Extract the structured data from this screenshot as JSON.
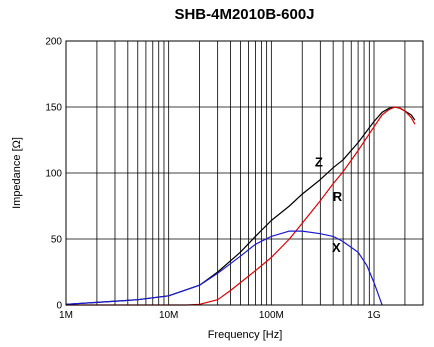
{
  "chart_data": {
    "type": "line",
    "title": "SHB-4M2010B-600J",
    "xlabel": "Frequency [Hz]",
    "ylabel": "Impedance [Ω]",
    "x_scale": "log",
    "xlim": [
      1000000,
      3000000000
    ],
    "ylim": [
      0,
      200
    ],
    "x_ticks": [
      {
        "value": 1000000,
        "label": "1M"
      },
      {
        "value": 10000000,
        "label": "10M"
      },
      {
        "value": 100000000,
        "label": "100M"
      },
      {
        "value": 1000000000,
        "label": "1G"
      }
    ],
    "y_ticks": [
      {
        "value": 0,
        "label": "0"
      },
      {
        "value": 50,
        "label": "50"
      },
      {
        "value": 100,
        "label": "100"
      },
      {
        "value": 150,
        "label": "150"
      },
      {
        "value": 200,
        "label": "200"
      }
    ],
    "grid": true,
    "series": [
      {
        "name": "Z",
        "color": "#000000",
        "x": [
          1000000,
          2000000,
          5000000,
          10000000,
          20000000,
          30000000,
          50000000,
          70000000,
          100000000,
          150000000,
          200000000,
          300000000,
          400000000,
          500000000,
          700000000,
          1000000000,
          1200000000,
          1400000000,
          1600000000,
          1800000000,
          2000000000,
          2300000000,
          2500000000
        ],
        "y": [
          0.5,
          2,
          4,
          7,
          15,
          25,
          40,
          52,
          64,
          75,
          84,
          95,
          104,
          110,
          123,
          139,
          146,
          149,
          150,
          149,
          147,
          144,
          140
        ]
      },
      {
        "name": "R",
        "color": "#e00000",
        "x": [
          1000000,
          10000000,
          15000000,
          20000000,
          30000000,
          40000000,
          50000000,
          70000000,
          100000000,
          150000000,
          200000000,
          300000000,
          400000000,
          500000000,
          700000000,
          1000000000,
          1200000000,
          1400000000,
          1600000000,
          1800000000,
          2000000000,
          2300000000,
          2500000000
        ],
        "y": [
          0,
          0,
          0,
          0.5,
          4,
          11,
          17,
          26,
          36,
          50,
          62,
          79,
          92,
          101,
          117,
          135,
          144,
          148,
          150,
          149,
          147,
          142,
          137
        ]
      },
      {
        "name": "X",
        "color": "#1a1ad0",
        "x": [
          1000000,
          2000000,
          5000000,
          10000000,
          20000000,
          30000000,
          50000000,
          70000000,
          100000000,
          150000000,
          200000000,
          300000000,
          400000000,
          500000000,
          700000000,
          850000000,
          1000000000,
          1100000000,
          1200000000
        ],
        "y": [
          0.5,
          2,
          4,
          7,
          15,
          24,
          37,
          46,
          52,
          56,
          56,
          54,
          52,
          48,
          40,
          30,
          17,
          8,
          0
        ]
      }
    ],
    "annotations": [
      {
        "text": "Z",
        "x": 290000000,
        "y": 108,
        "color": "#000000"
      },
      {
        "text": "R",
        "x": 440000000,
        "y": 82,
        "color": "#000000"
      },
      {
        "text": "X",
        "x": 430000000,
        "y": 43,
        "color": "#000000"
      }
    ]
  }
}
